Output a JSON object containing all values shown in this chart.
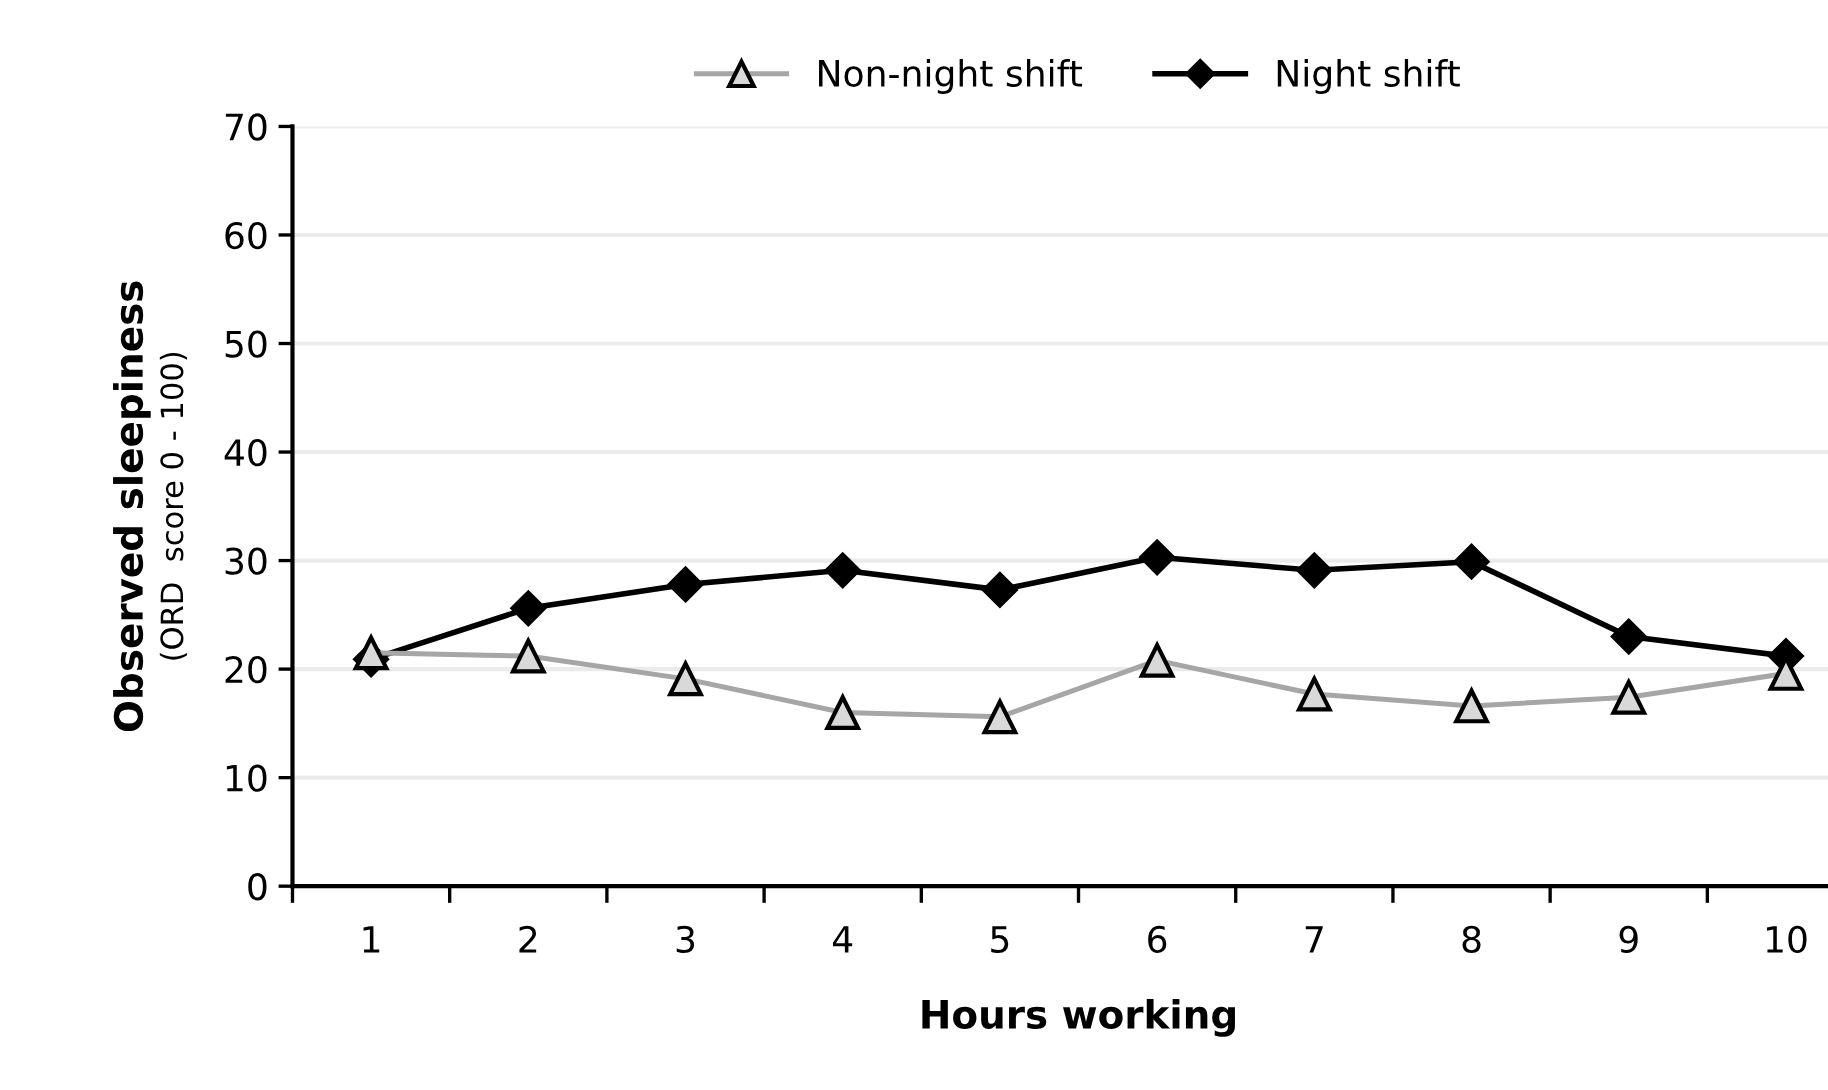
{
  "chart_data": {
    "type": "line",
    "xlabel": "Hours working",
    "ylabel": "Observed sleepiness\n(ORD  score 0 - 100)",
    "categories": [
      "1",
      "2",
      "3",
      "4",
      "5",
      "6",
      "7",
      "8",
      "9",
      "10"
    ],
    "series": [
      {
        "name": "Non-night shift",
        "color": "#a6a6a6",
        "marker": "triangle",
        "values": [
          21.5,
          21.2,
          19.1,
          16.0,
          15.6,
          20.8,
          17.7,
          16.6,
          17.4,
          19.6
        ]
      },
      {
        "name": "Night shift",
        "color": "#000000",
        "marker": "diamond",
        "values": [
          20.9,
          25.6,
          27.8,
          29.1,
          27.3,
          30.3,
          29.1,
          29.9,
          23.0,
          21.2
        ]
      }
    ],
    "ylim": [
      0,
      70
    ],
    "yticks": [
      0,
      10,
      20,
      30,
      40,
      50,
      60,
      70
    ],
    "grid": "y",
    "legend": "top",
    "line_style": "solid"
  }
}
